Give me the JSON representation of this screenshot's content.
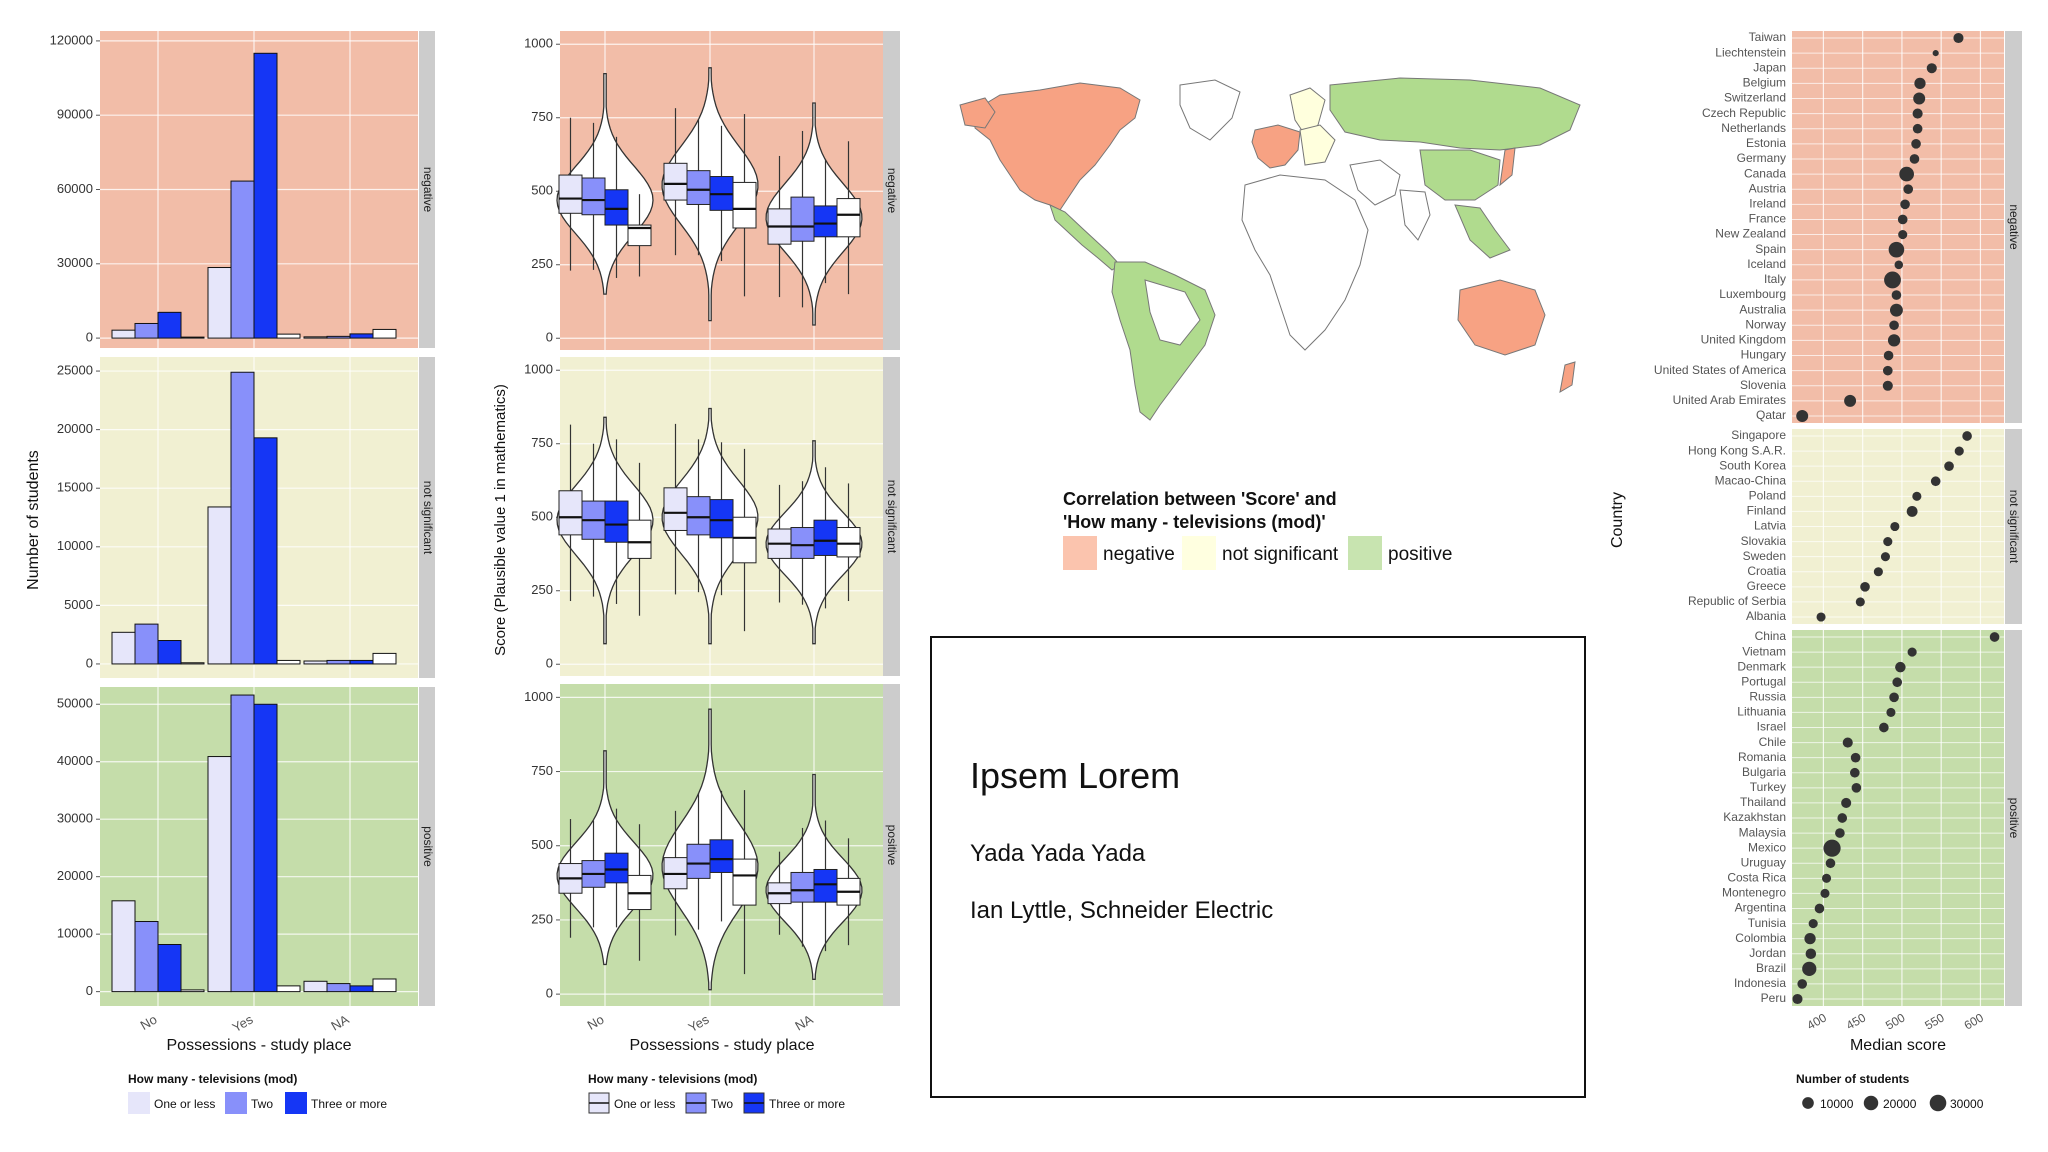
{
  "colors": {
    "negative_bg": "#F2BDA8",
    "not_significant_bg": "#F1F0D2",
    "positive_bg": "#C5DDAA",
    "strip": "#CCCCCC",
    "one_or_less": "#E6E6FA",
    "two": "#8890FA",
    "three_or_more": "#1536F5",
    "na_fill": "#FFFFFF",
    "map_negative": "#F7A283",
    "map_not_significant": "#FFFFDD",
    "map_positive": "#B0DB8E",
    "map_legend_negative": "#FBC4AE",
    "map_legend_not_significant": "#FFFFE0",
    "map_legend_positive": "#C8E4B0",
    "point": "#333333"
  },
  "chart_data": [
    {
      "id": "bar-counts",
      "type": "bar",
      "facets": [
        "negative",
        "not significant",
        "positive"
      ],
      "categories": [
        "No",
        "Yes",
        "NA"
      ],
      "series_names": [
        "One or less",
        "Two",
        "Three or more",
        "NA"
      ],
      "values": [
        [
          [
            3200,
            5900,
            10400,
            400
          ],
          [
            28500,
            63400,
            115000,
            1600
          ],
          [
            500,
            700,
            1700,
            3500
          ]
        ],
        [
          [
            2700,
            3400,
            2000,
            100
          ],
          [
            13400,
            24900,
            19300,
            300
          ],
          [
            250,
            300,
            300,
            900
          ]
        ],
        [
          [
            15800,
            12200,
            8200,
            300
          ],
          [
            40900,
            51600,
            50000,
            1000
          ],
          [
            1800,
            1400,
            1000,
            2200
          ]
        ]
      ],
      "yticks": [
        [
          0,
          30000,
          60000,
          90000,
          120000
        ],
        [
          0,
          5000,
          10000,
          15000,
          20000,
          25000
        ],
        [
          0,
          10000,
          20000,
          30000,
          40000,
          50000
        ]
      ],
      "ylims": [
        [
          -4000,
          124000
        ],
        [
          -1200,
          26200
        ],
        [
          -2500,
          53000
        ]
      ],
      "xlabel": "Possessions - study place",
      "ylabel": "Number of students",
      "legend_title": "How many - televisions (mod)",
      "legend_labels": [
        "One or less",
        "Two",
        "Three or more"
      ]
    },
    {
      "id": "violin-scores",
      "type": "violin",
      "facets": [
        "negative",
        "not significant",
        "positive"
      ],
      "categories": [
        "No",
        "Yes",
        "NA"
      ],
      "series_names": [
        "One or less",
        "Two",
        "Three or more",
        "NA"
      ],
      "violin_range": [
        [
          [
            150,
            900
          ],
          [
            60,
            920
          ],
          [
            45,
            800
          ]
        ],
        [
          [
            70,
            840
          ],
          [
            70,
            870
          ],
          [
            70,
            760
          ]
        ],
        [
          [
            100,
            820
          ],
          [
            15,
            960
          ],
          [
            50,
            740
          ]
        ]
      ],
      "violin_medians": [
        [
          470,
          520,
          410
        ],
        [
          490,
          500,
          410
        ],
        [
          400,
          430,
          350
        ]
      ],
      "boxes": [
        [
          [
            [
              425,
              475,
              555
            ],
            [
              420,
              470,
              545
            ],
            [
              385,
              440,
              505
            ],
            [
              315,
              375,
              385
            ]
          ],
          [
            [
              470,
              525,
              595
            ],
            [
              455,
              505,
              570
            ],
            [
              435,
              490,
              550
            ],
            [
              375,
              440,
              530
            ]
          ],
          [
            [
              320,
              380,
              440
            ],
            [
              330,
              380,
              480
            ],
            [
              345,
              390,
              450
            ],
            [
              345,
              420,
              475
            ]
          ]
        ],
        [
          [
            [
              440,
              500,
              590
            ],
            [
              425,
              490,
              555
            ],
            [
              415,
              475,
              555
            ],
            [
              360,
              415,
              490
            ]
          ],
          [
            [
              455,
              515,
              600
            ],
            [
              440,
              500,
              570
            ],
            [
              430,
              490,
              560
            ],
            [
              345,
              430,
              500
            ]
          ],
          [
            [
              360,
              410,
              460
            ],
            [
              360,
              405,
              465
            ],
            [
              370,
              420,
              490
            ],
            [
              365,
              410,
              465
            ]
          ]
        ],
        [
          [
            [
              340,
              390,
              440
            ],
            [
              360,
              405,
              450
            ],
            [
              375,
              420,
              475
            ],
            [
              285,
              340,
              400
            ]
          ],
          [
            [
              355,
              405,
              460
            ],
            [
              390,
              440,
              505
            ],
            [
              410,
              455,
              520
            ],
            [
              300,
              400,
              455
            ]
          ],
          [
            [
              305,
              340,
              375
            ],
            [
              310,
              350,
              410
            ],
            [
              310,
              370,
              420
            ],
            [
              300,
              345,
              390
            ]
          ]
        ]
      ],
      "yticks": [
        0,
        250,
        500,
        750,
        1000
      ],
      "ylim": [
        -40,
        1045
      ],
      "xlabel": "Possessions - study place",
      "ylabel": "Score (Plausible value 1 in mathematics)",
      "legend_title": "How many - televisions (mod)",
      "legend_labels": [
        "One or less",
        "Two",
        "Three or more"
      ]
    },
    {
      "id": "median-dots",
      "type": "scatter",
      "facets": [
        {
          "name": "negative",
          "countries": [
            "Taiwan",
            "Liechtenstein",
            "Japan",
            "Belgium",
            "Switzerland",
            "Czech Republic",
            "Netherlands",
            "Estonia",
            "Germany",
            "Canada",
            "Austria",
            "Ireland",
            "France",
            "New Zealand",
            "Spain",
            "Iceland",
            "Italy",
            "Luxembourg",
            "Australia",
            "Norway",
            "United Kingdom",
            "Hungary",
            "United States of America",
            "Slovenia",
            "United Arab Emirates",
            "Qatar"
          ],
          "medians": [
            572,
            543,
            538,
            523,
            522,
            520,
            520,
            518,
            516,
            506,
            508,
            504,
            501,
            501,
            493,
            496,
            488,
            493,
            493,
            490,
            490,
            483,
            482,
            482,
            434,
            373
          ],
          "students": [
            6000,
            400,
            6000,
            9000,
            11000,
            6000,
            5000,
            5000,
            5000,
            21000,
            5000,
            5000,
            5000,
            4000,
            25000,
            3000,
            31000,
            5000,
            14000,
            5000,
            12000,
            5000,
            5000,
            6000,
            11000,
            11000
          ]
        },
        {
          "name": "not significant",
          "countries": [
            "Singapore",
            "Hong Kong S.A.R.",
            "South Korea",
            "Macao-China",
            "Poland",
            "Finland",
            "Latvia",
            "Slovakia",
            "Sweden",
            "Croatia",
            "Greece",
            "Republic of Serbia",
            "Albania"
          ],
          "medians": [
            583,
            573,
            560,
            543,
            519,
            513,
            491,
            482,
            479,
            470,
            453,
            447,
            397
          ],
          "students": [
            5000,
            4000,
            5000,
            5000,
            4000,
            8000,
            4000,
            4000,
            4000,
            4000,
            5000,
            4000,
            4000
          ]
        },
        {
          "name": "positive",
          "countries": [
            "China",
            "Vietnam",
            "Denmark",
            "Portugal",
            "Russia",
            "Lithuania",
            "Israel",
            "Chile",
            "Romania",
            "Bulgaria",
            "Turkey",
            "Thailand",
            "Kazakhstan",
            "Malaysia",
            "Mexico",
            "Uruguay",
            "Costa Rica",
            "Montenegro",
            "Argentina",
            "Tunisia",
            "Colombia",
            "Jordan",
            "Brazil",
            "Indonesia",
            "Peru"
          ],
          "medians": [
            618,
            513,
            498,
            494,
            490,
            486,
            477,
            431,
            441,
            440,
            442,
            429,
            424,
            421,
            411,
            409,
            404,
            402,
            395,
            387,
            383,
            384,
            382,
            373,
            367
          ],
          "students": [
            5000,
            4000,
            7000,
            5000,
            5000,
            4000,
            5000,
            6000,
            5000,
            5000,
            5000,
            6000,
            5000,
            5000,
            33000,
            5000,
            4000,
            4000,
            5000,
            4000,
            9000,
            7000,
            19000,
            5000,
            6000
          ]
        }
      ],
      "xticks": [
        400,
        450,
        500,
        550,
        600
      ],
      "xlim": [
        360,
        630
      ],
      "xlabel": "Median score",
      "ylabel": "Country",
      "legend_title": "Number of students",
      "legend_sizes": [
        10000,
        20000,
        30000
      ],
      "legend_labels": [
        "10000",
        "20000",
        "30000"
      ]
    }
  ],
  "map": {
    "legend_title_line1": "Correlation between 'Score' and",
    "legend_title_line2": "'How many - televisions (mod)'",
    "legend_labels": [
      "negative",
      "not significant",
      "positive"
    ]
  },
  "title_card": {
    "title": "Ipsem Lorem",
    "subtitle": "Yada Yada Yada",
    "author": "Ian Lyttle, Schneider Electric"
  }
}
